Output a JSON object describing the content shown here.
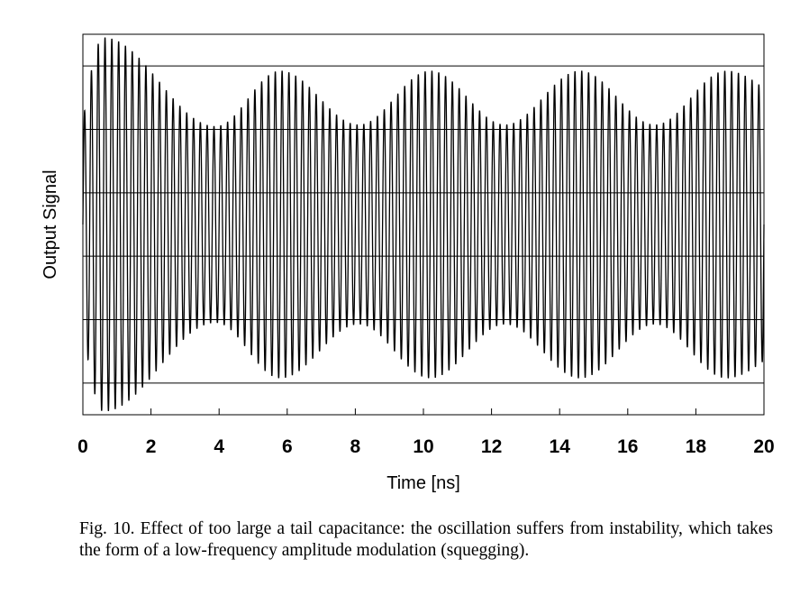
{
  "chart_data": {
    "type": "line",
    "title": "",
    "xlabel": "Time [ns]",
    "ylabel": "Output Signal",
    "xlim": [
      0,
      20
    ],
    "ylim": [
      -1.2,
      1.2
    ],
    "x_ticks": [
      "0",
      "2",
      "4",
      "6",
      "8",
      "10",
      "12",
      "14",
      "16",
      "18",
      "20"
    ],
    "y_ticks": [],
    "grid": "horizontal",
    "legend": "none",
    "series": [
      {
        "description_of_shape": "fast oscillation with amplitude modulation",
        "carrier_period_ns": 0.2,
        "envelope_peaks": [
          {
            "x": 0.6,
            "y": 1.18
          },
          {
            "x": 5.8,
            "y": 0.97
          },
          {
            "x": 10.2,
            "y": 0.97
          },
          {
            "x": 14.6,
            "y": 0.97
          },
          {
            "x": 18.9,
            "y": 0.97
          }
        ],
        "envelope_troughs": [
          {
            "x": 3.9,
            "y": 0.62
          },
          {
            "x": 8.1,
            "y": 0.63
          },
          {
            "x": 12.4,
            "y": 0.63
          },
          {
            "x": 16.8,
            "y": 0.63
          }
        ],
        "color": "#000000"
      }
    ]
  },
  "caption": {
    "text": "Fig. 10.  Effect of too large a tail capacitance: the oscillation suffers from instability, which takes the form of a low-frequency amplitude modulation (squegging)."
  }
}
